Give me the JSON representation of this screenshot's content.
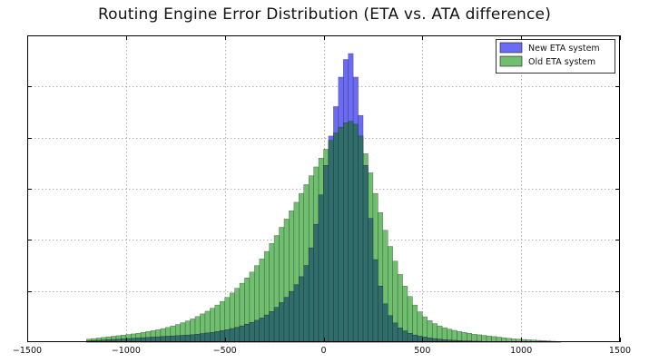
{
  "chart_data": {
    "type": "histogram",
    "title": "Routing Engine Error Distribution (ETA vs. ATA difference)",
    "xlabel": "",
    "ylabel": "",
    "xlim": [
      -1500,
      1500
    ],
    "ylim": [
      0,
      1
    ],
    "x_ticks": [
      -1500,
      -1000,
      -500,
      0,
      500,
      1000,
      1500
    ],
    "y_tick_count": 6,
    "grid": true,
    "legend_position": "top-right",
    "bin_start": -1200,
    "bin_width": 25,
    "series": [
      {
        "name": "New ETA system",
        "color": "#6b6bf5",
        "values": [
          0.004,
          0.005,
          0.006,
          0.007,
          0.008,
          0.009,
          0.01,
          0.011,
          0.012,
          0.013,
          0.014,
          0.015,
          0.016,
          0.017,
          0.018,
          0.019,
          0.02,
          0.021,
          0.022,
          0.023,
          0.024,
          0.025,
          0.027,
          0.029,
          0.031,
          0.033,
          0.036,
          0.039,
          0.042,
          0.046,
          0.05,
          0.055,
          0.061,
          0.067,
          0.074,
          0.082,
          0.092,
          0.104,
          0.118,
          0.134,
          0.152,
          0.172,
          0.195,
          0.222,
          0.26,
          0.32,
          0.4,
          0.5,
          0.6,
          0.7,
          0.8,
          0.9,
          0.96,
          0.98,
          0.9,
          0.77,
          0.6,
          0.42,
          0.28,
          0.19,
          0.13,
          0.09,
          0.065,
          0.048,
          0.038,
          0.03,
          0.024,
          0.02,
          0.017,
          0.014,
          0.012,
          0.01,
          0.008,
          0.007,
          0.006,
          0.005,
          0.004,
          0.004,
          0.003,
          0.003,
          0.002,
          0.002,
          0.002,
          0.002,
          0.001,
          0.001,
          0.001,
          0.001,
          0.001,
          0.001,
          0.001,
          0.001,
          0.001,
          0.001,
          0.001,
          0.001
        ]
      },
      {
        "name": "Old ETA system",
        "color": "#6fbf6f",
        "values": [
          0.01,
          0.012,
          0.014,
          0.016,
          0.018,
          0.02,
          0.022,
          0.024,
          0.026,
          0.028,
          0.03,
          0.033,
          0.036,
          0.039,
          0.042,
          0.046,
          0.05,
          0.055,
          0.06,
          0.066,
          0.072,
          0.079,
          0.087,
          0.096,
          0.105,
          0.115,
          0.126,
          0.138,
          0.152,
          0.167,
          0.183,
          0.2,
          0.218,
          0.238,
          0.26,
          0.283,
          0.308,
          0.335,
          0.362,
          0.39,
          0.418,
          0.446,
          0.475,
          0.505,
          0.535,
          0.565,
          0.595,
          0.625,
          0.655,
          0.685,
          0.71,
          0.73,
          0.745,
          0.75,
          0.74,
          0.7,
          0.64,
          0.575,
          0.505,
          0.44,
          0.38,
          0.325,
          0.275,
          0.23,
          0.19,
          0.155,
          0.126,
          0.103,
          0.086,
          0.073,
          0.063,
          0.055,
          0.049,
          0.044,
          0.04,
          0.036,
          0.033,
          0.03,
          0.027,
          0.025,
          0.023,
          0.021,
          0.019,
          0.017,
          0.015,
          0.013,
          0.011,
          0.01,
          0.009,
          0.008,
          0.007,
          0.006,
          0.005,
          0.004,
          0.003,
          0.002
        ]
      }
    ]
  }
}
